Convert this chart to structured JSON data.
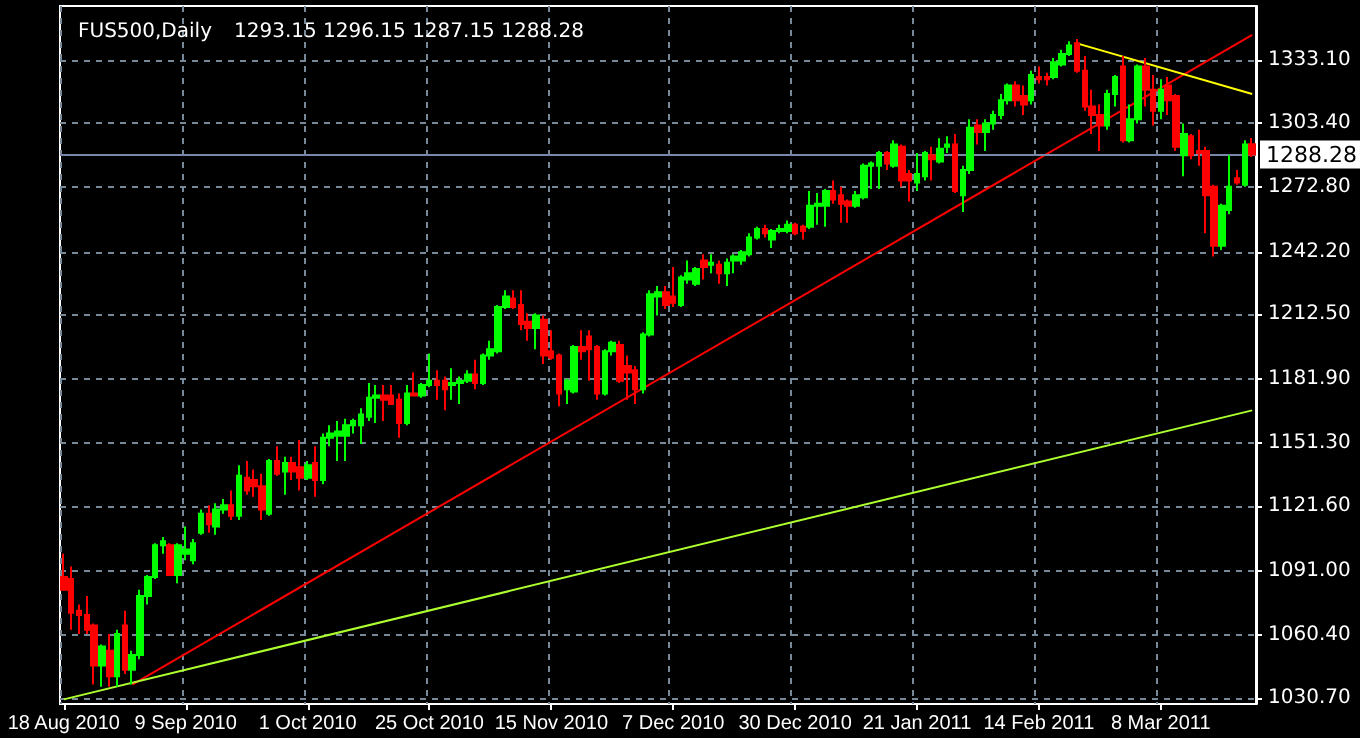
{
  "chart_data": {
    "type": "candlestick",
    "title": "FUS500,Daily",
    "subtitle": "1293.15 1296.15 1287.15 1288.28",
    "categories": [
      "18 Aug 2010",
      null,
      null,
      null,
      null,
      null,
      null,
      null,
      null,
      null,
      null,
      null,
      null,
      null,
      null,
      null,
      "9 Sep 2010",
      null,
      null,
      null,
      null,
      null,
      null,
      null,
      null,
      null,
      null,
      null,
      null,
      null,
      null,
      null,
      "1 Oct 2010",
      null,
      null,
      null,
      null,
      null,
      null,
      null,
      null,
      null,
      null,
      null,
      null,
      null,
      null,
      null,
      "25 Oct 2010",
      null,
      null,
      null,
      null,
      null,
      null,
      null,
      null,
      null,
      null,
      null,
      null,
      null,
      null,
      null,
      "15 Nov 2010",
      null,
      null,
      null,
      null,
      null,
      null,
      null,
      null,
      null,
      null,
      null,
      null,
      null,
      null,
      null,
      "7 Dec 2010",
      null,
      null,
      null,
      null,
      null,
      null,
      null,
      null,
      null,
      null,
      null,
      null,
      null,
      null,
      null,
      "30 Dec 2010",
      null,
      null,
      null,
      null,
      null,
      null,
      null,
      null,
      null,
      null,
      null,
      null,
      null,
      null,
      null,
      "21 Jan 2011",
      null,
      null,
      null,
      null,
      null,
      null,
      null,
      null,
      null,
      null,
      null,
      null,
      null,
      null,
      null,
      "14 Feb 2011",
      null,
      null,
      null,
      null,
      null,
      null,
      null,
      null,
      null,
      null,
      null,
      null,
      null,
      null,
      null,
      "8 Mar 2011",
      null,
      null,
      null,
      null,
      null,
      null,
      null,
      null,
      null,
      null,
      null,
      null
    ],
    "series": [
      {
        "colors": [
          "#ff0000",
          "#ff0000",
          "#ff0000",
          "#ff0000",
          "#ff0000",
          "#00ff00",
          "#ff0000",
          "#00ff00",
          "#ff0000",
          "#00ff00",
          "#00ff00",
          "#00ff00",
          "#00ff00",
          "#00ff00",
          "#ff0000",
          "#00ff00",
          "#00ff00",
          "#00ff00",
          "#00ff00",
          "#ff0000",
          "#00ff00",
          "#00ff00",
          "#ff0000",
          "#00ff00",
          "#ff0000",
          "#ff0000",
          "#ff0000",
          "#00ff00",
          "#ff0000",
          "#00ff00",
          "#ff0000",
          "#ff0000",
          "#00ff00",
          "#ff0000",
          "#00ff00",
          "#00ff00",
          "#00ff00",
          "#00ff00",
          "#00ff00",
          "#00ff00",
          "#00ff00",
          "#00ff00",
          "#ff0000",
          "#ff0000",
          "#ff0000",
          "#00ff00",
          "#ff0000",
          "#00ff00",
          "#00ff00",
          "#ff0000",
          "#ff0000",
          "#00ff00",
          "#00ff00",
          "#00ff00",
          "#ff0000",
          "#00ff00",
          "#00ff00",
          "#00ff00",
          "#00ff00",
          "#ff0000",
          "#ff0000",
          "#ff0000",
          "#00ff00",
          "#ff0000",
          "#ff0000",
          "#ff0000",
          "#00ff00",
          "#00ff00",
          "#ff0000",
          "#ff0000",
          "#ff0000",
          "#00ff00",
          "#00ff00",
          "#ff0000",
          "#ff0000",
          "#ff0000",
          "#00ff00",
          "#00ff00",
          "#00ff00",
          "#ff0000",
          "#ff0000",
          "#00ff00",
          "#00ff00",
          "#00ff00",
          "#ff0000",
          "#00ff00",
          "#ff0000",
          "#00ff00",
          "#00ff00",
          "#00ff00",
          "#00ff00",
          "#00ff00",
          "#ff0000",
          "#00ff00",
          "#00ff00",
          "#00ff00",
          "#ff0000",
          "#ff0000",
          "#00ff00",
          "#00ff00",
          "#00ff00",
          "#ff0000",
          "#ff0000",
          "#ff0000",
          "#00ff00",
          "#00ff00",
          "#00ff00",
          "#00ff00",
          "#ff0000",
          "#00ff00",
          "#ff0000",
          "#ff0000",
          "#00ff00",
          "#00ff00",
          "#ff0000",
          "#00ff00",
          "#00ff00",
          "#ff0000",
          "#00ff00",
          "#00ff00",
          "#ff0000",
          "#00ff00",
          "#00ff00",
          "#00ff00",
          "#00ff00",
          "#ff0000",
          "#ff0000",
          "#00ff00",
          "#ff0000",
          "#ff0000",
          "#00ff00",
          "#00ff00",
          "#00ff00",
          "#ff0000",
          "#ff0000",
          "#ff0000",
          "#ff0000",
          "#00ff00",
          "#00ff00",
          "#ff0000",
          "#00ff00",
          "#00ff00",
          "#ff0000",
          "#ff0000",
          "#00ff00",
          "#ff0000",
          "#ff0000",
          "#00ff00",
          "#ff0000",
          "#ff0000",
          "#ff0000",
          "#ff0000",
          "#00ff00",
          "#00ff00",
          "#ff0000",
          "#00ff00",
          "#ff0000"
        ],
        "ohlc": [
          [
            1088,
            1099,
            1082,
            1082
          ],
          [
            1087,
            1093,
            1063,
            1071
          ],
          [
            1072,
            1075,
            1061,
            1070
          ],
          [
            1070,
            1079,
            1061,
            1063
          ],
          [
            1065,
            1066,
            1037,
            1046
          ],
          [
            1046,
            1056,
            1036,
            1055
          ],
          [
            1053,
            1061,
            1036,
            1041
          ],
          [
            1041,
            1063,
            1036,
            1061
          ],
          [
            1065,
            1072,
            1042,
            1044
          ],
          [
            1044,
            1053,
            1037,
            1051
          ],
          [
            1051,
            1082,
            1049,
            1079
          ],
          [
            1079,
            1089,
            1075,
            1088
          ],
          [
            1088,
            1104,
            1087,
            1103
          ],
          [
            1103,
            1107,
            1099,
            1105
          ],
          [
            1103,
            1104,
            1089,
            1089
          ],
          [
            1089,
            1104,
            1085,
            1103
          ],
          [
            1099,
            1112,
            1096,
            1101
          ],
          [
            1096,
            1106,
            1094,
            1104
          ],
          [
            1109,
            1120,
            1108,
            1118
          ],
          [
            1118,
            1122,
            1109,
            1113
          ],
          [
            1112,
            1123,
            1108,
            1120
          ],
          [
            1120,
            1125,
            1118,
            1122
          ],
          [
            1122,
            1129,
            1115,
            1117
          ],
          [
            1117,
            1141,
            1115,
            1136
          ],
          [
            1135,
            1143,
            1127,
            1129
          ],
          [
            1134,
            1139,
            1126,
            1131
          ],
          [
            1131,
            1137,
            1115,
            1120
          ],
          [
            1118,
            1144,
            1117,
            1143
          ],
          [
            1143,
            1150,
            1136,
            1137
          ],
          [
            1138,
            1145,
            1127,
            1142
          ],
          [
            1142,
            1145,
            1134,
            1138
          ],
          [
            1140,
            1153,
            1129,
            1135
          ],
          [
            1135,
            1143,
            1134,
            1141
          ],
          [
            1142,
            1150,
            1126,
            1134
          ],
          [
            1134,
            1156,
            1132,
            1154
          ],
          [
            1154,
            1160,
            1150,
            1156
          ],
          [
            1155,
            1162,
            1143,
            1157
          ],
          [
            1155,
            1163,
            1143,
            1160
          ],
          [
            1160,
            1163,
            1156,
            1162
          ],
          [
            1160,
            1168,
            1151,
            1165
          ],
          [
            1164,
            1180,
            1162,
            1173
          ],
          [
            1173,
            1179,
            1161,
            1174
          ],
          [
            1174,
            1179,
            1162,
            1172
          ],
          [
            1174,
            1179,
            1170,
            1170
          ],
          [
            1172,
            1175,
            1154,
            1161
          ],
          [
            1161,
            1179,
            1160,
            1175
          ],
          [
            1175,
            1185,
            1174,
            1174
          ],
          [
            1174,
            1180,
            1173,
            1179
          ],
          [
            1179,
            1194,
            1178,
            1181
          ],
          [
            1181,
            1186,
            1172,
            1179
          ],
          [
            1181,
            1183,
            1167,
            1177
          ],
          [
            1179,
            1187,
            1172,
            1180
          ],
          [
            1180,
            1183,
            1170,
            1181
          ],
          [
            1181,
            1186,
            1180,
            1184
          ],
          [
            1184,
            1191,
            1177,
            1180
          ],
          [
            1180,
            1194,
            1179,
            1193
          ],
          [
            1193,
            1200,
            1191,
            1196
          ],
          [
            1195,
            1217,
            1194,
            1216
          ],
          [
            1216,
            1224,
            1215,
            1221
          ],
          [
            1220,
            1224,
            1215,
            1216
          ],
          [
            1217,
            1224,
            1205,
            1208
          ],
          [
            1209,
            1213,
            1200,
            1206
          ],
          [
            1206,
            1213,
            1196,
            1212
          ],
          [
            1210,
            1212,
            1189,
            1193
          ],
          [
            1195,
            1205,
            1191,
            1192
          ],
          [
            1193,
            1194,
            1169,
            1175
          ],
          [
            1177,
            1182,
            1170,
            1181
          ],
          [
            1176,
            1198,
            1175,
            1197
          ],
          [
            1197,
            1205,
            1191,
            1195
          ],
          [
            1202,
            1205,
            1181,
            1196
          ],
          [
            1197,
            1198,
            1172,
            1175
          ],
          [
            1175,
            1196,
            1174,
            1195
          ],
          [
            1195,
            1200,
            1193,
            1199
          ],
          [
            1198,
            1200,
            1180,
            1181
          ],
          [
            1188,
            1193,
            1172,
            1185
          ],
          [
            1186,
            1188,
            1170,
            1177
          ],
          [
            1177,
            1204,
            1175,
            1203
          ],
          [
            1203,
            1224,
            1202,
            1222
          ],
          [
            1221,
            1226,
            1212,
            1223
          ],
          [
            1223,
            1226,
            1215,
            1217
          ],
          [
            1221,
            1235,
            1216,
            1218
          ],
          [
            1217,
            1231,
            1216,
            1230
          ],
          [
            1229,
            1238,
            1227,
            1232
          ],
          [
            1227,
            1235,
            1226,
            1234
          ],
          [
            1238,
            1241,
            1229,
            1235
          ],
          [
            1236,
            1241,
            1232,
            1237
          ],
          [
            1236,
            1238,
            1227,
            1232
          ],
          [
            1232,
            1239,
            1226,
            1237
          ],
          [
            1238,
            1241,
            1232,
            1240
          ],
          [
            1238,
            1243,
            1236,
            1242
          ],
          [
            1241,
            1251,
            1240,
            1249
          ],
          [
            1249,
            1254,
            1248,
            1253
          ],
          [
            1253,
            1255,
            1249,
            1251
          ],
          [
            1248,
            1253,
            1244,
            1252
          ],
          [
            1252,
            1255,
            1251,
            1253
          ],
          [
            1252,
            1257,
            1251,
            1255
          ],
          [
            1255,
            1256,
            1250,
            1251
          ],
          [
            1254,
            1255,
            1248,
            1252
          ],
          [
            1254,
            1271,
            1253,
            1264
          ],
          [
            1264,
            1270,
            1255,
            1265
          ],
          [
            1264,
            1272,
            1254,
            1271
          ],
          [
            1271,
            1276,
            1265,
            1267
          ],
          [
            1269,
            1273,
            1256,
            1265
          ],
          [
            1266,
            1267,
            1256,
            1264
          ],
          [
            1264,
            1271,
            1263,
            1269
          ],
          [
            1268,
            1284,
            1267,
            1283
          ],
          [
            1283,
            1285,
            1272,
            1284
          ],
          [
            1283,
            1290,
            1272,
            1289
          ],
          [
            1289,
            1290,
            1281,
            1284
          ],
          [
            1283,
            1295,
            1282,
            1293
          ],
          [
            1292,
            1293,
            1273,
            1276
          ],
          [
            1279,
            1281,
            1266,
            1276
          ],
          [
            1275,
            1289,
            1271,
            1279
          ],
          [
            1278,
            1290,
            1276,
            1289
          ],
          [
            1288,
            1292,
            1276,
            1286
          ],
          [
            1285,
            1296,
            1284,
            1291
          ],
          [
            1292,
            1297,
            1289,
            1293
          ],
          [
            1293,
            1298,
            1270,
            1271
          ],
          [
            1269,
            1283,
            1261,
            1281
          ],
          [
            1281,
            1305,
            1279,
            1301
          ],
          [
            1302,
            1305,
            1293,
            1299
          ],
          [
            1299,
            1305,
            1290,
            1303
          ],
          [
            1303,
            1309,
            1300,
            1307
          ],
          [
            1307,
            1317,
            1305,
            1314
          ],
          [
            1314,
            1322,
            1312,
            1321
          ],
          [
            1321,
            1323,
            1311,
            1314
          ],
          [
            1316,
            1321,
            1307,
            1312
          ],
          [
            1314,
            1328,
            1312,
            1326
          ],
          [
            1325,
            1330,
            1322,
            1324
          ],
          [
            1325,
            1327,
            1321,
            1324
          ],
          [
            1325,
            1334,
            1324,
            1332
          ],
          [
            1331,
            1338,
            1330,
            1336
          ],
          [
            1336,
            1342,
            1335,
            1340
          ],
          [
            1341,
            1343,
            1327,
            1328
          ],
          [
            1328,
            1335,
            1309,
            1311
          ],
          [
            1311,
            1319,
            1298,
            1307
          ],
          [
            1307,
            1312,
            1290,
            1302
          ],
          [
            1302,
            1319,
            1300,
            1317
          ],
          [
            1317,
            1326,
            1311,
            1325
          ],
          [
            1330,
            1335,
            1294,
            1295
          ],
          [
            1295,
            1312,
            1294,
            1305
          ],
          [
            1305,
            1331,
            1303,
            1330
          ],
          [
            1330,
            1334,
            1311,
            1319
          ],
          [
            1319,
            1326,
            1302,
            1309
          ],
          [
            1309,
            1324,
            1305,
            1319
          ],
          [
            1321,
            1325,
            1307,
            1314
          ],
          [
            1316,
            1317,
            1290,
            1292
          ],
          [
            1288,
            1303,
            1278,
            1298
          ],
          [
            1297,
            1298,
            1286,
            1288
          ],
          [
            1290,
            1300,
            1283,
            1289
          ],
          [
            1290,
            1292,
            1251,
            1269
          ],
          [
            1273,
            1274,
            1240,
            1245
          ],
          [
            1245,
            1265,
            1243,
            1264
          ],
          [
            1262,
            1288,
            1260,
            1273
          ],
          [
            1277,
            1281,
            1274,
            1275
          ],
          [
            1274,
            1295,
            1273,
            1293
          ],
          [
            1293.15,
            1296.15,
            1287.15,
            1288.28
          ]
        ]
      },
      {
        "type": "line",
        "color": "#ff0000",
        "values": [
          null,
          null,
          null,
          null,
          null,
          null,
          null,
          null,
          null,
          1037,
          null,
          null,
          null,
          null,
          null,
          null,
          null,
          null,
          null,
          null,
          null,
          null,
          null,
          null,
          null,
          null,
          null,
          null,
          null,
          null,
          null,
          null,
          null,
          null,
          null,
          null,
          null,
          null,
          null,
          null,
          null,
          null,
          null,
          null,
          null,
          null,
          null,
          null,
          null,
          null,
          null,
          null,
          null,
          null,
          null,
          null,
          null,
          null,
          null,
          null,
          null,
          null,
          null,
          null,
          null,
          null,
          null,
          null,
          null,
          null,
          null,
          null,
          null,
          null,
          null,
          null,
          null,
          null,
          null,
          null,
          null,
          null,
          null,
          null,
          null,
          null,
          null,
          null,
          null,
          null,
          null,
          null,
          null,
          null,
          null,
          null,
          null,
          null,
          null,
          null,
          null,
          null,
          null,
          null,
          null,
          null,
          null,
          null,
          null,
          null,
          null,
          null,
          null,
          null,
          null,
          null,
          null,
          null,
          null,
          null,
          null,
          null,
          null,
          null,
          null,
          null,
          null,
          null,
          null,
          null,
          null,
          null,
          null,
          null,
          null,
          null,
          null,
          null,
          null,
          null,
          null,
          null,
          null,
          null,
          null,
          null,
          null,
          null,
          null,
          null,
          null,
          null,
          null,
          null,
          null,
          null,
          1345
        ]
      },
      {
        "type": "line",
        "color": "#adff2f",
        "values": [
          1030,
          null,
          null,
          null,
          null,
          null,
          null,
          null,
          null,
          null,
          null,
          null,
          null,
          null,
          null,
          null,
          null,
          null,
          null,
          null,
          null,
          null,
          null,
          null,
          null,
          null,
          null,
          null,
          null,
          null,
          null,
          null,
          null,
          null,
          null,
          null,
          null,
          null,
          null,
          null,
          null,
          null,
          null,
          null,
          null,
          null,
          null,
          null,
          null,
          null,
          null,
          null,
          null,
          null,
          null,
          null,
          null,
          null,
          null,
          null,
          null,
          null,
          null,
          null,
          null,
          null,
          null,
          null,
          null,
          null,
          null,
          null,
          null,
          null,
          null,
          null,
          null,
          null,
          null,
          null,
          null,
          null,
          null,
          null,
          null,
          null,
          null,
          null,
          null,
          null,
          null,
          null,
          null,
          null,
          null,
          null,
          null,
          null,
          null,
          null,
          null,
          null,
          null,
          null,
          null,
          null,
          null,
          null,
          null,
          null,
          null,
          null,
          null,
          null,
          null,
          null,
          null,
          null,
          null,
          null,
          null,
          null,
          null,
          null,
          null,
          null,
          null,
          null,
          null,
          null,
          null,
          null,
          null,
          null,
          null,
          null,
          null,
          null,
          null,
          null,
          null,
          null,
          null,
          null,
          null,
          null,
          null,
          null,
          null,
          null,
          null,
          null,
          null,
          null,
          null,
          null,
          1167
        ]
      },
      {
        "type": "line",
        "color": "#ffff00",
        "values": [
          null,
          null,
          null,
          null,
          null,
          null,
          null,
          null,
          null,
          null,
          null,
          null,
          null,
          null,
          null,
          null,
          null,
          null,
          null,
          null,
          null,
          null,
          null,
          null,
          null,
          null,
          null,
          null,
          null,
          null,
          null,
          null,
          null,
          null,
          null,
          null,
          null,
          null,
          null,
          null,
          null,
          null,
          null,
          null,
          null,
          null,
          null,
          null,
          null,
          null,
          null,
          null,
          null,
          null,
          null,
          null,
          null,
          null,
          null,
          null,
          null,
          null,
          null,
          null,
          null,
          null,
          null,
          null,
          null,
          null,
          null,
          null,
          null,
          null,
          null,
          null,
          null,
          null,
          null,
          null,
          null,
          null,
          null,
          null,
          null,
          null,
          null,
          null,
          null,
          null,
          null,
          null,
          null,
          null,
          null,
          null,
          null,
          null,
          null,
          null,
          null,
          null,
          null,
          null,
          null,
          null,
          null,
          null,
          null,
          null,
          null,
          null,
          null,
          null,
          null,
          null,
          null,
          null,
          null,
          null,
          null,
          null,
          null,
          null,
          null,
          null,
          null,
          null,
          null,
          null,
          null,
          null,
          null,
          1341,
          null,
          null,
          null,
          null,
          null,
          null,
          null,
          null,
          null,
          null,
          null,
          null,
          null,
          null,
          null,
          null,
          null,
          null,
          null,
          null,
          null,
          null,
          1317
        ]
      }
    ],
    "ylim": [
      1027.8,
      1358.7
    ],
    "yticks": [
      {
        "value": 1030.7,
        "label": "1030.70"
      },
      {
        "value": 1060.4,
        "label": "1060.40"
      },
      {
        "value": 1091,
        "label": "1091.00"
      },
      {
        "value": 1121.6,
        "label": "1121.60"
      },
      {
        "value": 1151.3,
        "label": "1151.30"
      },
      {
        "value": 1181.9,
        "label": "1181.90"
      },
      {
        "value": 1212.5,
        "label": "1212.50"
      },
      {
        "value": 1242.2,
        "label": "1242.20"
      },
      {
        "value": 1272.8,
        "label": "1272.80"
      },
      {
        "value": 1303.4,
        "label": "1303.40"
      },
      {
        "value": 1333.1,
        "label": "1333.10"
      }
    ],
    "ref_lines": [
      {
        "axis": "y",
        "value": 1288.28,
        "label": "1288.28",
        "color": "#7788aa"
      }
    ],
    "grid": true
  }
}
